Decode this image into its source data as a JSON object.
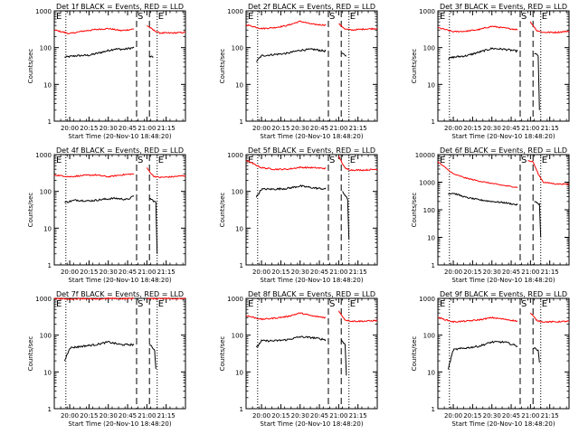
{
  "figure": {
    "xlabel": "Start Time (20-Nov-10 18:48:20)",
    "ylabel": "Counts/sec",
    "x_ticks": [
      "20:00",
      "20:15",
      "20:30",
      "20:45",
      "21:00",
      "21:15"
    ],
    "x_tick_values_min": [
      0,
      15,
      30,
      45,
      60,
      75
    ],
    "x_range_min": [
      -12,
      90
    ],
    "colors": {
      "events": "#000000",
      "lld": "#ff0000",
      "background": "#ffffff"
    }
  },
  "chart_data": [
    {
      "type": "line",
      "title": "Det 1f BLACK = Events, RED = LLD",
      "yscale": "log",
      "ylim": [
        1,
        1000
      ],
      "y_ticks": [
        "1000",
        "100",
        "10",
        "1"
      ],
      "dotted_lines_min": [
        -3,
        68
      ],
      "dashed_lines_min": [
        52,
        62
      ],
      "markers": [
        "S",
        "E"
      ],
      "series": [
        {
          "name": "Events",
          "points": [
            [
              -4,
              55
            ],
            [
              5,
              60
            ],
            [
              15,
              62
            ],
            [
              25,
              75
            ],
            [
              35,
              92
            ],
            [
              42,
              90
            ],
            [
              50,
              100
            ]
          ],
          "points_after": [
            [
              62,
              57
            ],
            [
              65,
              55
            ]
          ]
        },
        {
          "name": "LLD",
          "points": [
            [
              -12,
              300
            ],
            [
              0,
              240
            ],
            [
              10,
              280
            ],
            [
              20,
              310
            ],
            [
              30,
              330
            ],
            [
              40,
              290
            ],
            [
              50,
              320
            ]
          ],
          "points_after": [
            [
              60,
              400
            ],
            [
              65,
              300
            ],
            [
              70,
              250
            ],
            [
              80,
              250
            ],
            [
              90,
              260
            ]
          ]
        }
      ]
    },
    {
      "type": "line",
      "title": "Det 2f BLACK = Events, RED = LLD",
      "yscale": "log",
      "ylim": [
        1,
        1000
      ],
      "y_ticks": [
        "1000",
        "100",
        "10",
        "1"
      ],
      "dotted_lines_min": [
        -3,
        68
      ],
      "dashed_lines_min": [
        52,
        62
      ],
      "markers": [
        "S",
        "E"
      ],
      "series": [
        {
          "name": "Events",
          "points": [
            [
              -4,
              42
            ],
            [
              0,
              60
            ],
            [
              10,
              65
            ],
            [
              20,
              70
            ],
            [
              30,
              85
            ],
            [
              40,
              90
            ],
            [
              50,
              80
            ]
          ],
          "points_after": [
            [
              62,
              70
            ],
            [
              66,
              60
            ]
          ]
        },
        {
          "name": "LLD",
          "points": [
            [
              -12,
              420
            ],
            [
              0,
              330
            ],
            [
              10,
              350
            ],
            [
              20,
              400
            ],
            [
              30,
              520
            ],
            [
              40,
              430
            ],
            [
              50,
              410
            ]
          ],
          "points_after": [
            [
              60,
              450
            ],
            [
              65,
              320
            ],
            [
              70,
              300
            ],
            [
              80,
              320
            ],
            [
              90,
              330
            ]
          ]
        }
      ]
    },
    {
      "type": "line",
      "title": "Det 3f BLACK = Events, RED = LLD",
      "yscale": "log",
      "ylim": [
        1,
        1000
      ],
      "y_ticks": [
        "1000",
        "100",
        "10",
        "1"
      ],
      "dotted_lines_min": [
        -3,
        68
      ],
      "dashed_lines_min": [
        52,
        62
      ],
      "markers": [
        "S",
        "E"
      ],
      "series": [
        {
          "name": "Events",
          "points": [
            [
              -4,
              50
            ],
            [
              0,
              55
            ],
            [
              10,
              60
            ],
            [
              20,
              75
            ],
            [
              30,
              95
            ],
            [
              40,
              90
            ],
            [
              50,
              80
            ]
          ],
          "points_after": [
            [
              63,
              70
            ],
            [
              66,
              60
            ],
            [
              67,
              2
            ]
          ]
        },
        {
          "name": "LLD",
          "points": [
            [
              -12,
              350
            ],
            [
              0,
              270
            ],
            [
              10,
              280
            ],
            [
              20,
              310
            ],
            [
              30,
              380
            ],
            [
              40,
              340
            ],
            [
              50,
              310
            ]
          ],
          "points_after": [
            [
              60,
              500
            ],
            [
              65,
              290
            ],
            [
              70,
              260
            ],
            [
              80,
              260
            ],
            [
              90,
              280
            ]
          ]
        }
      ]
    },
    {
      "type": "line",
      "title": "Det 4f BLACK = Events, RED = LLD",
      "yscale": "log",
      "ylim": [
        1,
        1000
      ],
      "y_ticks": [
        "1000",
        "100",
        "10",
        "1"
      ],
      "dotted_lines_min": [
        -3,
        68
      ],
      "dashed_lines_min": [
        52,
        62
      ],
      "markers": [
        "S",
        "E"
      ],
      "series": [
        {
          "name": "Events",
          "points": [
            [
              -4,
              50
            ],
            [
              5,
              58
            ],
            [
              15,
              55
            ],
            [
              25,
              60
            ],
            [
              35,
              65
            ],
            [
              45,
              60
            ],
            [
              50,
              75
            ]
          ],
          "points_after": [
            [
              62,
              65
            ],
            [
              67,
              50
            ],
            [
              68,
              2
            ]
          ]
        },
        {
          "name": "LLD",
          "points": [
            [
              -12,
              280
            ],
            [
              0,
              250
            ],
            [
              10,
              270
            ],
            [
              20,
              280
            ],
            [
              30,
              250
            ],
            [
              40,
              280
            ],
            [
              50,
              300
            ]
          ],
          "points_after": [
            [
              60,
              430
            ],
            [
              65,
              260
            ],
            [
              70,
              240
            ],
            [
              80,
              250
            ],
            [
              90,
              270
            ]
          ]
        }
      ]
    },
    {
      "type": "line",
      "title": "Det 5f BLACK = Events, RED = LLD",
      "yscale": "log",
      "ylim": [
        1,
        1000
      ],
      "y_ticks": [
        "1000",
        "100",
        "10",
        "1"
      ],
      "dotted_lines_min": [
        -3,
        68
      ],
      "dashed_lines_min": [
        52,
        62
      ],
      "markers": [
        "S",
        "E"
      ],
      "series": [
        {
          "name": "Events",
          "points": [
            [
              -4,
              70
            ],
            [
              0,
              115
            ],
            [
              10,
              115
            ],
            [
              20,
              120
            ],
            [
              30,
              140
            ],
            [
              40,
              125
            ],
            [
              50,
              115
            ]
          ],
          "points_after": [
            [
              63,
              100
            ],
            [
              67,
              60
            ],
            [
              68,
              5
            ]
          ]
        },
        {
          "name": "LLD",
          "points": [
            [
              -12,
              700
            ],
            [
              0,
              440
            ],
            [
              10,
              400
            ],
            [
              20,
              400
            ],
            [
              30,
              450
            ],
            [
              40,
              440
            ],
            [
              50,
              420
            ]
          ],
          "points_after": [
            [
              60,
              900
            ],
            [
              65,
              420
            ],
            [
              70,
              380
            ],
            [
              80,
              380
            ],
            [
              90,
              400
            ]
          ]
        }
      ]
    },
    {
      "type": "line",
      "title": "Det 6f BLACK = Events, RED = LLD",
      "yscale": "log",
      "ylim": [
        1,
        10000
      ],
      "y_ticks": [
        "10000",
        "1000",
        "100",
        "10",
        "1"
      ],
      "dotted_lines_min": [
        -3,
        68
      ],
      "dashed_lines_min": [
        52,
        62
      ],
      "markers": [
        "S",
        "E"
      ],
      "series": [
        {
          "name": "Events",
          "points": [
            [
              -4,
              380
            ],
            [
              0,
              400
            ],
            [
              10,
              280
            ],
            [
              20,
              230
            ],
            [
              30,
              200
            ],
            [
              40,
              180
            ],
            [
              50,
              150
            ]
          ],
          "points_after": [
            [
              63,
              200
            ],
            [
              67,
              160
            ],
            [
              68,
              10
            ]
          ]
        },
        {
          "name": "LLD",
          "points": [
            [
              -12,
              5500
            ],
            [
              -4,
              2800
            ],
            [
              0,
              2000
            ],
            [
              10,
              1400
            ],
            [
              20,
              1100
            ],
            [
              30,
              900
            ],
            [
              40,
              750
            ],
            [
              50,
              650
            ]
          ],
          "points_after": [
            [
              58,
              6000
            ],
            [
              62,
              5500
            ],
            [
              66,
              2000
            ],
            [
              70,
              1000
            ],
            [
              80,
              860
            ],
            [
              90,
              850
            ]
          ]
        }
      ]
    },
    {
      "type": "line",
      "title": "Det 7f BLACK = Events, RED = LLD",
      "yscale": "log",
      "ylim": [
        1,
        1000
      ],
      "y_ticks": [
        "1000",
        "100",
        "10",
        "1"
      ],
      "dotted_lines_min": [
        -3,
        68
      ],
      "dashed_lines_min": [
        52,
        62
      ],
      "markers": [
        "S",
        "E"
      ],
      "series": [
        {
          "name": "Events",
          "points": [
            [
              -4,
              20
            ],
            [
              0,
              45
            ],
            [
              10,
              50
            ],
            [
              20,
              55
            ],
            [
              30,
              65
            ],
            [
              40,
              55
            ],
            [
              50,
              55
            ]
          ],
          "points_after": [
            [
              62,
              55
            ],
            [
              66,
              40
            ],
            [
              67,
              12
            ]
          ]
        },
        {
          "name": "LLD",
          "points": [
            [
              -12,
              1000
            ],
            [
              0,
              950
            ],
            [
              10,
              1000
            ],
            [
              20,
              950
            ],
            [
              30,
              1000
            ],
            [
              40,
              980
            ],
            [
              50,
              1000
            ]
          ],
          "points_after": [
            [
              60,
              1000
            ],
            [
              65,
              980
            ],
            [
              70,
              1000
            ],
            [
              80,
              990
            ],
            [
              90,
              1000
            ]
          ]
        }
      ]
    },
    {
      "type": "line",
      "title": "Det 8f BLACK = Events, RED = LLD",
      "yscale": "log",
      "ylim": [
        1,
        1000
      ],
      "y_ticks": [
        "1000",
        "100",
        "10",
        "1"
      ],
      "dotted_lines_min": [
        -3,
        68
      ],
      "dashed_lines_min": [
        52,
        62
      ],
      "markers": [
        "S",
        "E"
      ],
      "series": [
        {
          "name": "Events",
          "points": [
            [
              -4,
              45
            ],
            [
              0,
              70
            ],
            [
              10,
              70
            ],
            [
              20,
              75
            ],
            [
              30,
              90
            ],
            [
              40,
              85
            ],
            [
              50,
              75
            ]
          ],
          "points_after": [
            [
              62,
              75
            ],
            [
              65,
              55
            ],
            [
              66,
              8
            ]
          ]
        },
        {
          "name": "LLD",
          "points": [
            [
              -12,
              340
            ],
            [
              0,
              270
            ],
            [
              10,
              290
            ],
            [
              20,
              320
            ],
            [
              30,
              400
            ],
            [
              40,
              330
            ],
            [
              50,
              300
            ]
          ],
          "points_after": [
            [
              60,
              450
            ],
            [
              65,
              260
            ],
            [
              70,
              240
            ],
            [
              80,
              240
            ],
            [
              90,
              250
            ]
          ]
        }
      ]
    },
    {
      "type": "line",
      "title": "Det 9f BLACK = Events, RED = LLD",
      "yscale": "log",
      "ylim": [
        1,
        1000
      ],
      "y_ticks": [
        "1000",
        "100",
        "10",
        "1"
      ],
      "dotted_lines_min": [
        -3,
        68
      ],
      "dashed_lines_min": [
        52,
        62
      ],
      "markers": [
        "S",
        "E"
      ],
      "series": [
        {
          "name": "Events",
          "points": [
            [
              -4,
              12
            ],
            [
              0,
              40
            ],
            [
              10,
              45
            ],
            [
              20,
              50
            ],
            [
              30,
              65
            ],
            [
              40,
              65
            ],
            [
              50,
              50
            ]
          ],
          "points_after": [
            [
              62,
              45
            ],
            [
              66,
              40
            ],
            [
              67,
              18
            ]
          ]
        },
        {
          "name": "LLD",
          "points": [
            [
              -12,
              300
            ],
            [
              0,
              230
            ],
            [
              10,
              240
            ],
            [
              20,
              260
            ],
            [
              30,
              300
            ],
            [
              40,
              270
            ],
            [
              50,
              240
            ]
          ],
          "points_after": [
            [
              60,
              400
            ],
            [
              65,
              250
            ],
            [
              70,
              230
            ],
            [
              80,
              230
            ],
            [
              90,
              240
            ]
          ]
        }
      ]
    }
  ]
}
